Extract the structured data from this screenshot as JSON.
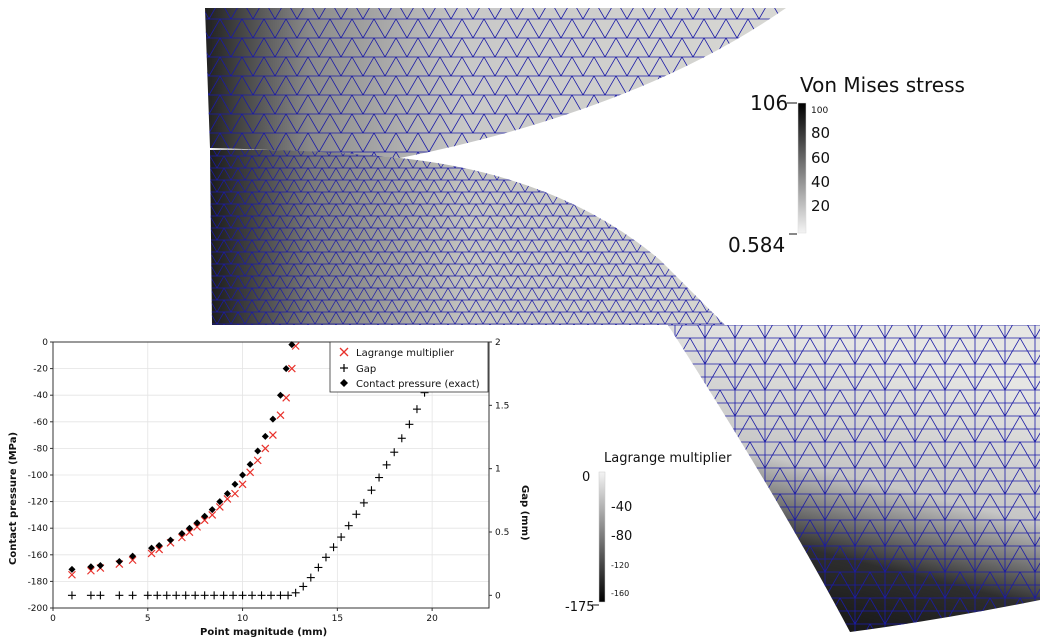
{
  "colors": {
    "mesh_line": "#1a1aa6",
    "lagrange_series": "#e8312b",
    "gap_series": "#000000",
    "exact_series": "#000000"
  },
  "scalebar_vm": {
    "title": "Von Mises stress",
    "max_label": "106",
    "min_label": "0.584",
    "ticks": [
      "100",
      "80",
      "60",
      "40",
      "20"
    ]
  },
  "scalebar_lm": {
    "title": "Lagrange multiplier",
    "max_label": "0",
    "min_label": "-175",
    "ticks": [
      "-40",
      "-80",
      "-120",
      "-160"
    ]
  },
  "chart_data": {
    "type": "scatter",
    "xlabel": "Point magnitude (mm)",
    "ylabel": "Contact pressure (MPa)",
    "y2label": "Gap (mm)",
    "xlim": [
      0,
      23
    ],
    "ylim": [
      -200,
      0
    ],
    "y2lim": [
      -0.1,
      2
    ],
    "xticks": [
      "0",
      "5",
      "10",
      "15",
      "20"
    ],
    "yticks": [
      "0",
      "-20",
      "-40",
      "-60",
      "-80",
      "-100",
      "-120",
      "-140",
      "-160",
      "-180",
      "-200"
    ],
    "y2ticks": [
      "0",
      "0.5",
      "1",
      "1.5",
      "2"
    ],
    "grid": true,
    "legend_position": "top-right",
    "series": [
      {
        "name": "Lagrange multiplier",
        "marker": "x",
        "axis": "left",
        "x": [
          1.0,
          2.0,
          2.5,
          3.5,
          4.2,
          5.2,
          5.6,
          6.2,
          6.8,
          7.2,
          7.6,
          8.0,
          8.4,
          8.8,
          9.2,
          9.6,
          10.0,
          10.4,
          10.8,
          11.2,
          11.6,
          12.0,
          12.3,
          12.6,
          12.8
        ],
        "y": [
          -175,
          -172,
          -170,
          -167,
          -164,
          -159,
          -156,
          -151,
          -147,
          -143,
          -139,
          -134,
          -130,
          -124,
          -118,
          -114,
          -107,
          -98,
          -89,
          -80,
          -70,
          -55,
          -42,
          -20,
          -3
        ]
      },
      {
        "name": "Gap",
        "marker": "+",
        "axis": "right",
        "x": [
          1.0,
          2.0,
          2.5,
          3.5,
          4.2,
          5.0,
          5.5,
          6.0,
          6.5,
          7.0,
          7.5,
          8.0,
          8.5,
          9.0,
          9.5,
          10.0,
          10.5,
          11.0,
          11.5,
          12.0,
          12.4,
          12.8,
          13.2,
          13.6,
          14.0,
          14.4,
          14.8,
          15.2,
          15.6,
          16.0,
          16.4,
          16.8,
          17.2,
          17.6,
          18.0,
          18.4,
          18.8,
          19.2,
          19.6,
          20.0
        ],
        "y": [
          0,
          0,
          0,
          0,
          0,
          0,
          0,
          0,
          0,
          0,
          0,
          0,
          0,
          0,
          0,
          0,
          0,
          0,
          0,
          0,
          0,
          0.02,
          0.07,
          0.14,
          0.22,
          0.3,
          0.38,
          0.46,
          0.55,
          0.64,
          0.73,
          0.83,
          0.93,
          1.03,
          1.13,
          1.24,
          1.35,
          1.47,
          1.6,
          1.75
        ]
      },
      {
        "name": "Contact pressure (exact)",
        "marker": "diamond",
        "axis": "left",
        "x": [
          1.0,
          2.0,
          2.5,
          3.5,
          4.2,
          5.2,
          5.6,
          6.2,
          6.8,
          7.2,
          7.6,
          8.0,
          8.4,
          8.8,
          9.2,
          9.6,
          10.0,
          10.4,
          10.8,
          11.2,
          11.6,
          12.0,
          12.3,
          12.6
        ],
        "y": [
          -171,
          -169,
          -168,
          -165,
          -161,
          -155,
          -153,
          -149,
          -144,
          -140,
          -136,
          -131,
          -126,
          -120,
          -114,
          -107,
          -100,
          -92,
          -82,
          -71,
          -58,
          -40,
          -20,
          -2
        ]
      }
    ]
  }
}
